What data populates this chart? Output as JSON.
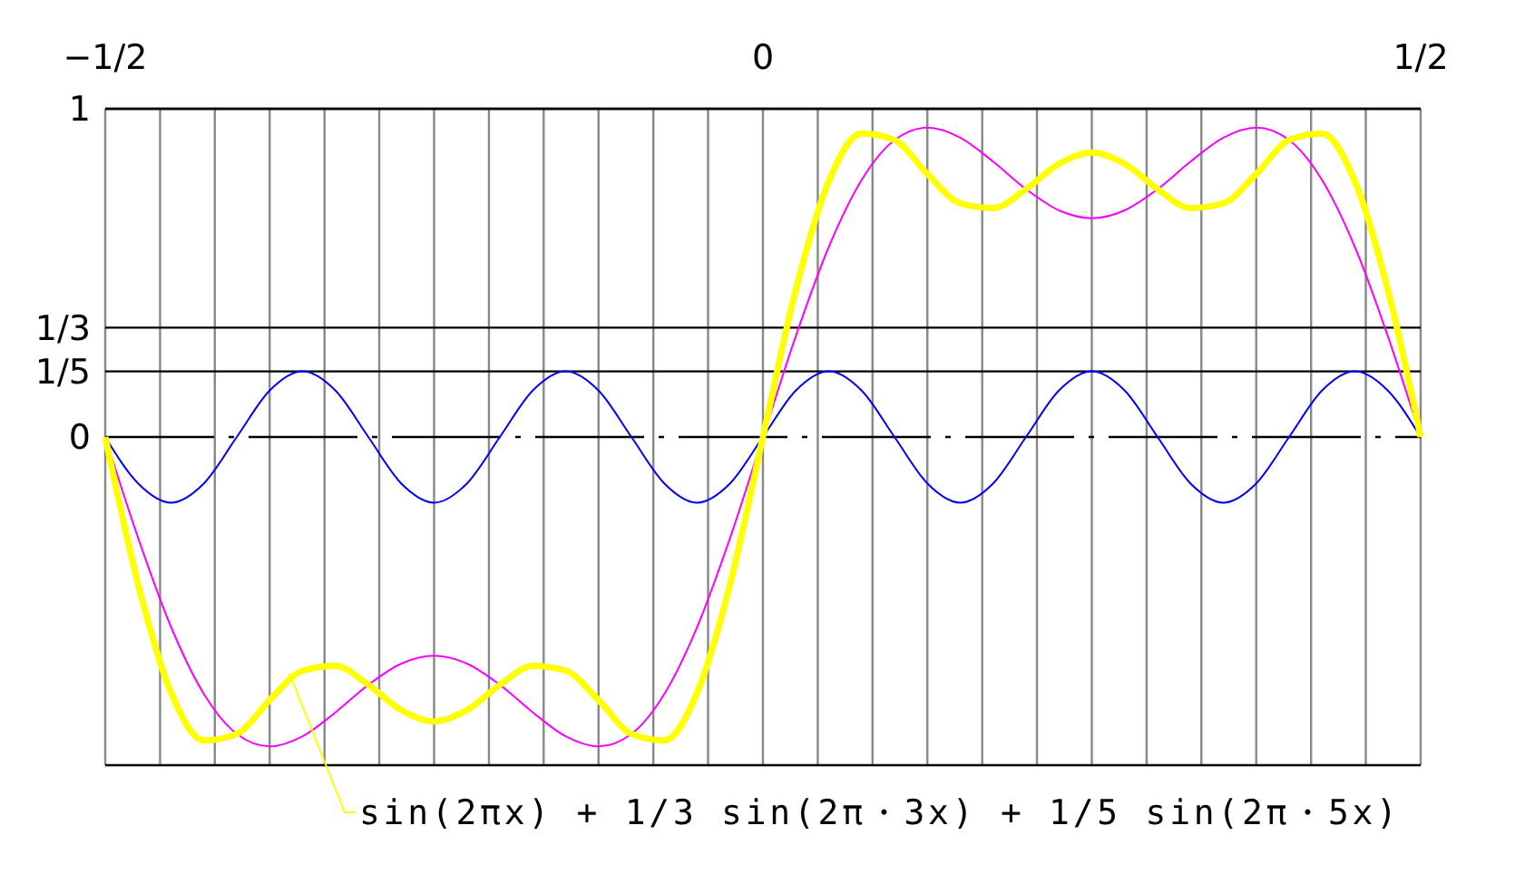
{
  "chart_data": {
    "type": "line",
    "x": [
      -0.5,
      -0.475,
      -0.45,
      -0.425,
      -0.4,
      -0.375,
      -0.35,
      -0.325,
      -0.3,
      -0.275,
      -0.25,
      -0.225,
      -0.2,
      -0.175,
      -0.15,
      -0.125,
      -0.1,
      -0.075,
      -0.05,
      -0.025,
      0,
      0.025,
      0.05,
      0.075,
      0.1,
      0.125,
      0.15,
      0.175,
      0.2,
      0.225,
      0.25,
      0.275,
      0.3,
      0.325,
      0.35,
      0.375,
      0.4,
      0.425,
      0.45,
      0.475,
      0.5
    ],
    "series": [
      {
        "color": "#0000ff",
        "values": [
          0,
          -0.1414,
          -0.2,
          -0.1414,
          0,
          0.1414,
          0.2,
          0.1414,
          0,
          -0.1414,
          -0.2,
          -0.1414,
          0,
          0.1414,
          0.2,
          0.1414,
          0,
          -0.1414,
          -0.2,
          -0.1414,
          0,
          0.1414,
          0.2,
          0.1414,
          0,
          -0.1414,
          -0.2,
          -0.1414,
          0,
          0.1414,
          0.2,
          0.1414,
          0,
          -0.1414,
          -0.2,
          -0.1414,
          0,
          0.1414,
          0.2,
          0.1414,
          0
        ]
      },
      {
        "color": "#ff00ff",
        "values": [
          0,
          -0.3077,
          -0.5787,
          -0.7832,
          -0.9048,
          -0.9428,
          -0.912,
          -0.8389,
          -0.7552,
          -0.6907,
          -0.6667,
          -0.6907,
          -0.7552,
          -0.8389,
          -0.912,
          -0.9428,
          -0.9048,
          -0.7832,
          -0.5787,
          -0.3077,
          0,
          0.3077,
          0.5787,
          0.7832,
          0.9048,
          0.9428,
          0.912,
          0.8389,
          0.7552,
          0.6907,
          0.6667,
          0.6907,
          0.7552,
          0.8389,
          0.912,
          0.9428,
          0.9048,
          0.7832,
          0.5787,
          0.3077,
          0
        ]
      },
      {
        "color": "#ffff00",
        "values": [
          0,
          -0.4491,
          -0.7787,
          -0.9246,
          -0.9048,
          -0.8014,
          -0.712,
          -0.6975,
          -0.7552,
          -0.8321,
          -0.8667,
          -0.8321,
          -0.7552,
          -0.6975,
          -0.712,
          -0.8014,
          -0.9048,
          -0.9246,
          -0.7787,
          -0.4491,
          0,
          0.4491,
          0.7787,
          0.9246,
          0.9048,
          0.8014,
          0.712,
          0.6975,
          0.7552,
          0.8321,
          0.8667,
          0.8321,
          0.7552,
          0.6975,
          0.712,
          0.8014,
          0.9048,
          0.9246,
          0.7787,
          0.4491,
          0
        ]
      }
    ],
    "xlim": [
      -0.5,
      0.5
    ],
    "xticks": [
      {
        "value": -0.5,
        "label": "−1/2"
      },
      {
        "value": -0.4583,
        "label": null
      },
      {
        "value": -0.4167,
        "label": null
      },
      {
        "value": -0.375,
        "label": null
      },
      {
        "value": -0.3333,
        "label": null
      },
      {
        "value": -0.2917,
        "label": null
      },
      {
        "value": -0.25,
        "label": null
      },
      {
        "value": -0.2083,
        "label": null
      },
      {
        "value": -0.1667,
        "label": null
      },
      {
        "value": -0.125,
        "label": null
      },
      {
        "value": -0.0833,
        "label": null
      },
      {
        "value": -0.0417,
        "label": null
      },
      0,
      {
        "value": 0.0417,
        "label": null
      },
      {
        "value": 0.0833,
        "label": null
      },
      {
        "value": 0.125,
        "label": null
      },
      {
        "value": 0.1667,
        "label": null
      },
      {
        "value": 0.2083,
        "label": null
      },
      {
        "value": 0.25,
        "label": null
      },
      {
        "value": 0.2917,
        "label": null
      },
      {
        "value": 0.3333,
        "label": null
      },
      {
        "value": 0.375,
        "label": null
      },
      {
        "value": 0.4167,
        "label": null
      },
      {
        "value": 0.4583,
        "label": null
      },
      {
        "value": 0.5,
        "label": "1/2"
      }
    ],
    "ylim": [
      -1,
      1
    ],
    "yticks": [
      1,
      {
        "value": 0.3333,
        "label": "1/3"
      },
      {
        "value": 0.2,
        "label": "1/5"
      },
      0
    ],
    "grid": true,
    "ref_lines": [
      {
        "axis": "y",
        "value": 0,
        "line_style": "dashed"
      }
    ],
    "annotations": [
      {
        "text": "sin(2πx) + 1/3 sin(2π・3x) + 1/5 sin(2π・5x)",
        "x": -0.36,
        "y": -0.72
      }
    ],
    "marker": "none"
  }
}
